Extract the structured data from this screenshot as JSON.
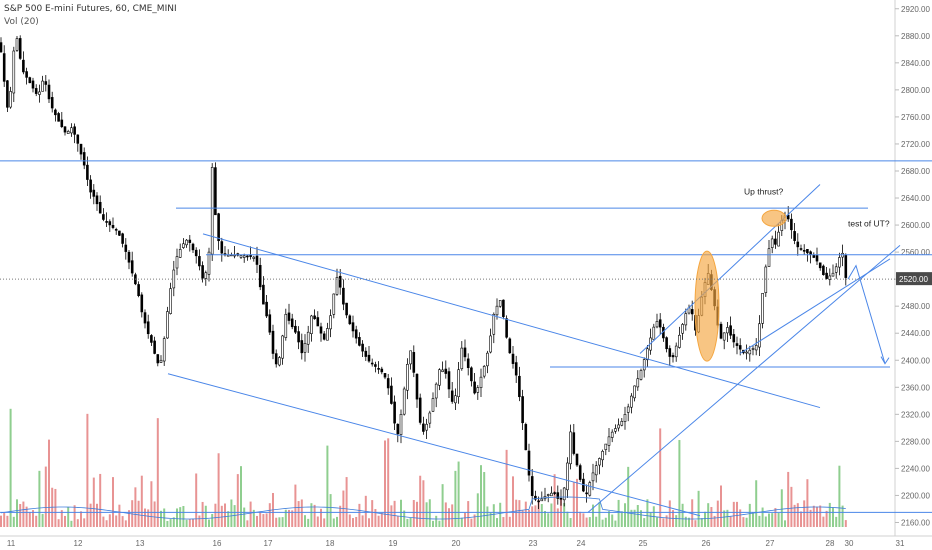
{
  "header": {
    "symbol_line": "S&P 500 E-mini Futures, 60, CME_MINI",
    "indicator_line": "Vol (20)"
  },
  "colors": {
    "background": "#ffffff",
    "candle_up_fill": "#ffffff",
    "candle_down_fill": "#000000",
    "candle_outline": "#000000",
    "volume_up": "#8fce8f",
    "volume_down": "#e89393",
    "volume_ma": "#3d7ddb",
    "trendline": "#4a86e8",
    "highlight_ellipse": "#f4a640",
    "last_price_badge": "#4a4a4a",
    "axis_text": "#666666"
  },
  "chart_data": {
    "type": "candlestick",
    "title": "S&P 500 E-mini Futures, 60, CME_MINI",
    "price_axis": {
      "ticks": [
        "2920.00",
        "2880.00",
        "2840.00",
        "2800.00",
        "2760.00",
        "2720.00",
        "2680.00",
        "2640.00",
        "2600.00",
        "2560.00",
        "2520.00",
        "2480.00",
        "2440.00",
        "2400.00",
        "2360.00",
        "2320.00",
        "2280.00",
        "2240.00",
        "2200.00",
        "2160.00"
      ],
      "range": [
        2140,
        2930
      ]
    },
    "time_axis": {
      "labels": [
        "11",
        "12",
        "13",
        "16",
        "17",
        "18",
        "19",
        "20",
        "23",
        "24",
        "25",
        "26",
        "27",
        "28",
        "30",
        "31"
      ]
    },
    "last_price": "2520.00",
    "indicator": "Vol (20)",
    "price_path": [
      [
        0,
        2870
      ],
      [
        4,
        2815
      ],
      [
        9,
        2755
      ],
      [
        12,
        2835
      ],
      [
        16,
        2885
      ],
      [
        22,
        2830
      ],
      [
        30,
        2810
      ],
      [
        38,
        2790
      ],
      [
        44,
        2820
      ],
      [
        50,
        2780
      ],
      [
        58,
        2755
      ],
      [
        66,
        2735
      ],
      [
        72,
        2745
      ],
      [
        78,
        2720
      ],
      [
        84,
        2690
      ],
      [
        90,
        2650
      ],
      [
        95,
        2640
      ],
      [
        102,
        2610
      ],
      [
        110,
        2600
      ],
      [
        118,
        2590
      ],
      [
        126,
        2560
      ],
      [
        132,
        2530
      ],
      [
        138,
        2500
      ],
      [
        142,
        2470
      ],
      [
        148,
        2440
      ],
      [
        153,
        2420
      ],
      [
        157,
        2395
      ],
      [
        161,
        2400
      ],
      [
        165,
        2440
      ],
      [
        168,
        2480
      ],
      [
        172,
        2520
      ],
      [
        176,
        2550
      ],
      [
        182,
        2570
      ],
      [
        188,
        2580
      ],
      [
        194,
        2560
      ],
      [
        198,
        2550
      ],
      [
        202,
        2520
      ],
      [
        206,
        2530
      ],
      [
        209,
        2560
      ],
      [
        212,
        2690
      ],
      [
        215,
        2620
      ],
      [
        220,
        2560
      ],
      [
        226,
        2555
      ],
      [
        232,
        2556
      ],
      [
        240,
        2555
      ],
      [
        248,
        2554
      ],
      [
        256,
        2552
      ],
      [
        262,
        2490
      ],
      [
        266,
        2470
      ],
      [
        270,
        2440
      ],
      [
        274,
        2400
      ],
      [
        278,
        2390
      ],
      [
        282,
        2430
      ],
      [
        286,
        2470
      ],
      [
        290,
        2455
      ],
      [
        296,
        2440
      ],
      [
        302,
        2410
      ],
      [
        308,
        2440
      ],
      [
        312,
        2470
      ],
      [
        318,
        2450
      ],
      [
        324,
        2430
      ],
      [
        330,
        2460
      ],
      [
        334,
        2500
      ],
      [
        338,
        2530
      ],
      [
        342,
        2490
      ],
      [
        348,
        2460
      ],
      [
        354,
        2440
      ],
      [
        360,
        2420
      ],
      [
        368,
        2400
      ],
      [
        376,
        2390
      ],
      [
        384,
        2380
      ],
      [
        390,
        2350
      ],
      [
        394,
        2310
      ],
      [
        398,
        2290
      ],
      [
        402,
        2330
      ],
      [
        406,
        2380
      ],
      [
        410,
        2420
      ],
      [
        414,
        2380
      ],
      [
        418,
        2330
      ],
      [
        422,
        2290
      ],
      [
        428,
        2310
      ],
      [
        434,
        2350
      ],
      [
        440,
        2390
      ],
      [
        446,
        2380
      ],
      [
        450,
        2350
      ],
      [
        454,
        2330
      ],
      [
        458,
        2380
      ],
      [
        462,
        2420
      ],
      [
        466,
        2400
      ],
      [
        470,
        2380
      ],
      [
        474,
        2350
      ],
      [
        478,
        2360
      ],
      [
        482,
        2380
      ],
      [
        486,
        2400
      ],
      [
        490,
        2430
      ],
      [
        494,
        2470
      ],
      [
        500,
        2490
      ],
      [
        504,
        2460
      ],
      [
        508,
        2420
      ],
      [
        512,
        2400
      ],
      [
        516,
        2380
      ],
      [
        520,
        2340
      ],
      [
        524,
        2290
      ],
      [
        528,
        2240
      ],
      [
        532,
        2200
      ],
      [
        538,
        2190
      ],
      [
        546,
        2200
      ],
      [
        554,
        2205
      ],
      [
        560,
        2190
      ],
      [
        566,
        2220
      ],
      [
        570,
        2300
      ],
      [
        574,
        2260
      ],
      [
        578,
        2240
      ],
      [
        582,
        2210
      ],
      [
        586,
        2200
      ],
      [
        592,
        2230
      ],
      [
        598,
        2250
      ],
      [
        604,
        2270
      ],
      [
        610,
        2290
      ],
      [
        616,
        2300
      ],
      [
        622,
        2310
      ],
      [
        628,
        2330
      ],
      [
        634,
        2360
      ],
      [
        640,
        2380
      ],
      [
        644,
        2400
      ],
      [
        648,
        2420
      ],
      [
        652,
        2440
      ],
      [
        656,
        2460
      ],
      [
        660,
        2450
      ],
      [
        664,
        2430
      ],
      [
        668,
        2410
      ],
      [
        672,
        2400
      ],
      [
        676,
        2420
      ],
      [
        680,
        2440
      ],
      [
        684,
        2460
      ],
      [
        688,
        2480
      ],
      [
        692,
        2470
      ],
      [
        696,
        2440
      ],
      [
        700,
        2480
      ],
      [
        704,
        2510
      ],
      [
        708,
        2530
      ],
      [
        712,
        2500
      ],
      [
        716,
        2470
      ],
      [
        720,
        2430
      ],
      [
        724,
        2440
      ],
      [
        728,
        2450
      ],
      [
        732,
        2430
      ],
      [
        738,
        2420
      ],
      [
        744,
        2410
      ],
      [
        750,
        2415
      ],
      [
        756,
        2420
      ],
      [
        760,
        2460
      ],
      [
        764,
        2520
      ],
      [
        768,
        2560
      ],
      [
        772,
        2580
      ],
      [
        776,
        2570
      ],
      [
        780,
        2600
      ],
      [
        784,
        2615
      ],
      [
        788,
        2610
      ],
      [
        792,
        2590
      ],
      [
        796,
        2570
      ],
      [
        800,
        2565
      ],
      [
        806,
        2560
      ],
      [
        812,
        2555
      ],
      [
        818,
        2545
      ],
      [
        822,
        2530
      ],
      [
        826,
        2520
      ],
      [
        830,
        2525
      ],
      [
        834,
        2530
      ],
      [
        838,
        2545
      ],
      [
        842,
        2565
      ],
      [
        846,
        2520
      ]
    ],
    "trendlines": [
      {
        "from": [
          0,
          2695
        ],
        "to": [
          932,
          2695
        ]
      },
      {
        "from": [
          176,
          2625
        ],
        "to": [
          868,
          2625
        ]
      },
      {
        "from": [
          206,
          2556
        ],
        "to": [
          932,
          2556
        ]
      },
      {
        "from": [
          550,
          2390
        ],
        "to": [
          890,
          2390
        ]
      },
      {
        "from": [
          203,
          2587
        ],
        "to": [
          820,
          2330
        ]
      },
      {
        "from": [
          168,
          2380
        ],
        "to": [
          700,
          2170
        ]
      },
      {
        "from": [
          740,
          2410
        ],
        "to": [
          890,
          2550
        ]
      },
      {
        "from": [
          588,
          2175
        ],
        "to": [
          900,
          2570
        ]
      },
      {
        "from": [
          640,
          2410
        ],
        "to": [
          820,
          2660
        ]
      },
      {
        "from": [
          0,
          2175
        ],
        "to": [
          932,
          2175
        ]
      }
    ],
    "projection_arrow": {
      "from": [
        848,
        2520
      ],
      "via": [
        856,
        2540
      ],
      "to": [
        885,
        2395
      ]
    },
    "highlight_ellipses": [
      {
        "cx": 707,
        "cy": 2480,
        "rx": 12,
        "ry": 55
      },
      {
        "cx": 774,
        "cy": 2610,
        "rx": 12,
        "ry": 8
      }
    ],
    "annotations": [
      {
        "text": "Up thrust?",
        "x": 744,
        "y": 2645
      },
      {
        "text": "test of UT?",
        "x": 848,
        "y": 2598
      }
    ]
  }
}
